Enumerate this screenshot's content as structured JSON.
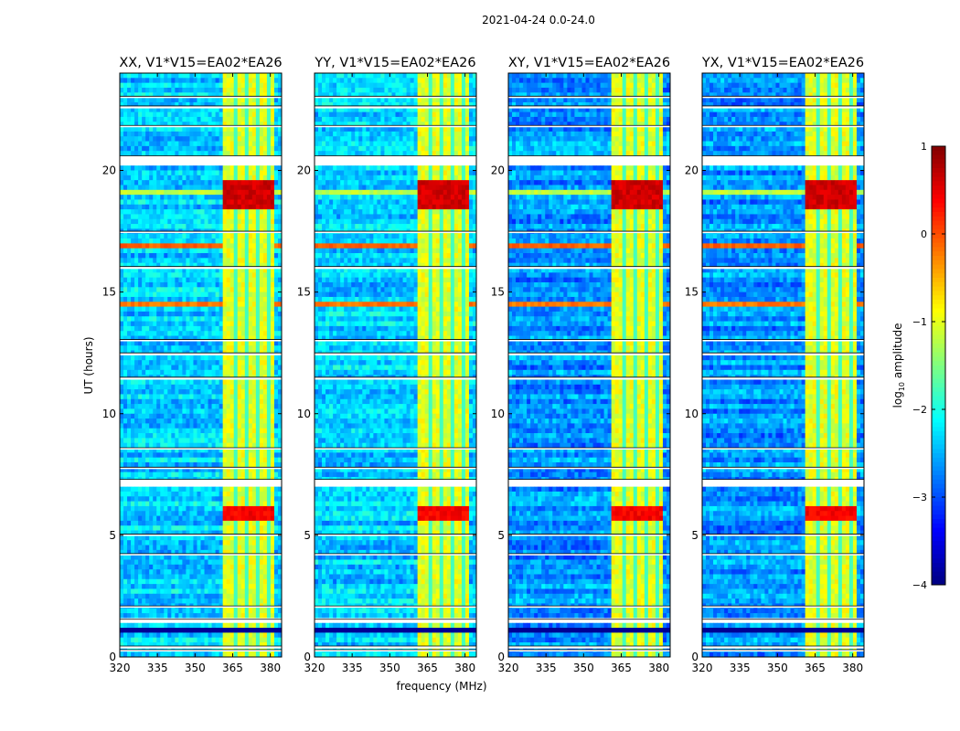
{
  "chart_data": {
    "type": "heatmap",
    "suptitle": "2021-04-24 0.0-24.0",
    "panels": [
      {
        "title": "XX, V1*V15=EA02*EA26",
        "base_level": -2.35
      },
      {
        "title": "YY, V1*V15=EA02*EA26",
        "base_level": -2.35
      },
      {
        "title": "XY, V1*V15=EA02*EA26",
        "base_level": -2.65
      },
      {
        "title": "YX, V1*V15=EA02*EA26",
        "base_level": -2.65
      }
    ],
    "xlabel": "frequency (MHz)",
    "ylabel": "UT (hours)",
    "xlim": [
      320,
      384.5
    ],
    "ylim": [
      0,
      24
    ],
    "xticks": [
      "320",
      "335",
      "350",
      "365",
      "380"
    ],
    "yticks": [
      "0",
      "5",
      "10",
      "15",
      "20"
    ],
    "colorbar": {
      "label": "log10 amplitude",
      "label_main": "log",
      "label_sub": "10",
      "label_tail": " amplitude",
      "range": [
        -4,
        1
      ],
      "ticks": [
        "1",
        "0",
        "−1",
        "−2",
        "−3",
        "−4"
      ],
      "colormap": "jet"
    },
    "rfi_band_mhz": [
      361,
      381
    ],
    "rfi_band_level": -1.0,
    "rfi_band_gaps_mhz": [
      366.5,
      371,
      375.5,
      379.5
    ],
    "strong_rfi_hours": [
      [
        18.4,
        19.6,
        0.6
      ],
      [
        5.6,
        6.3,
        0.4
      ]
    ],
    "broadband_hours": [
      [
        16.8,
        17.0,
        -0.1
      ],
      [
        14.4,
        14.6,
        -0.2
      ],
      [
        19.0,
        19.3,
        -1.2
      ]
    ],
    "low_hours": [
      [
        1.0,
        1.3
      ],
      [
        0.9,
        1.0
      ]
    ],
    "flagged_hours": [
      [
        0.25,
        0.3
      ],
      [
        0.35,
        0.45
      ],
      [
        1.5,
        1.55
      ],
      [
        2.05,
        2.1
      ],
      [
        4.2,
        4.25
      ],
      [
        5.0,
        5.05
      ],
      [
        7.1,
        7.3
      ],
      [
        7.75,
        7.8
      ],
      [
        8.55,
        8.6
      ],
      [
        11.4,
        11.5
      ],
      [
        12.4,
        12.5
      ],
      [
        13.0,
        13.05
      ],
      [
        15.95,
        16.05
      ],
      [
        17.45,
        17.5
      ],
      [
        20.3,
        20.6
      ],
      [
        21.8,
        21.85
      ],
      [
        22.55,
        22.65
      ],
      [
        23.0,
        23.05
      ]
    ]
  }
}
